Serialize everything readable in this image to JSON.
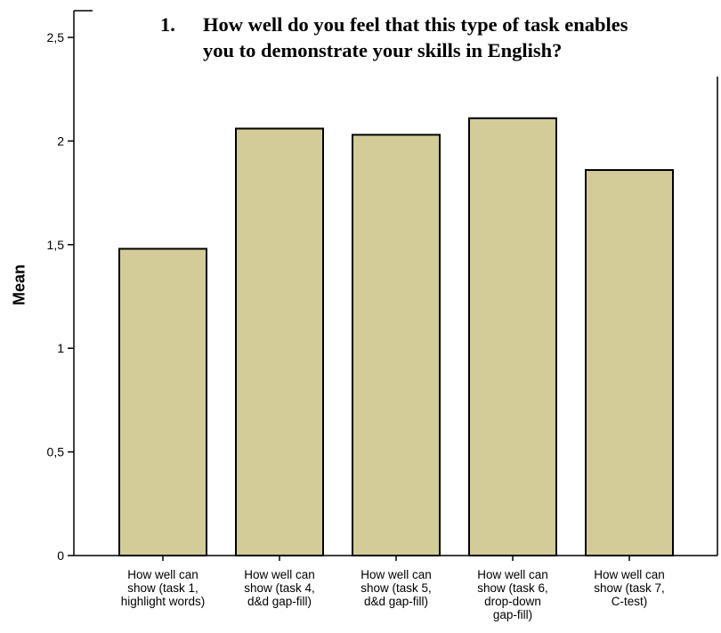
{
  "chart_data": {
    "type": "bar",
    "title": {
      "number": "1.",
      "lines": [
        "How well do you feel that this type of task enables",
        "you to demonstrate your skills in English?"
      ]
    },
    "ylabel": "Mean",
    "ylim": [
      0,
      2.5
    ],
    "yticks": [
      "0",
      "0,5",
      "1",
      "1,5",
      "2",
      "2,5"
    ],
    "ytick_values": [
      0,
      0.5,
      1,
      1.5,
      2,
      2.5
    ],
    "categories": [
      [
        "How well can",
        "show (task 1,",
        "highlight words)"
      ],
      [
        "How well can",
        "show (task 4,",
        "d&d gap-fill)"
      ],
      [
        "How well can",
        "show (task 5,",
        "d&d gap-fill)"
      ],
      [
        "How well can",
        "show (task 6,",
        "drop-down",
        "gap-fill)"
      ],
      [
        "How well can",
        "show (task 7,",
        "C-test)"
      ]
    ],
    "values": [
      1.48,
      2.06,
      2.03,
      2.11,
      1.86
    ],
    "bar_color": "#d3cc98",
    "bar_edge_color": "#000000",
    "grid": false
  }
}
